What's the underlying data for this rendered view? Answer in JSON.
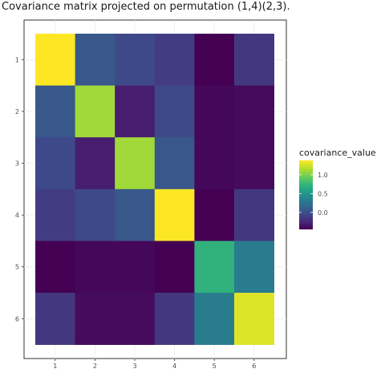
{
  "chart_data": {
    "type": "heatmap",
    "title": "Covariance matrix projected on permutation (1,4)(2,3).",
    "x_categories": [
      "1",
      "2",
      "3",
      "4",
      "5",
      "6"
    ],
    "y_categories": [
      "1",
      "2",
      "3",
      "4",
      "5",
      "6"
    ],
    "values": [
      [
        1.38,
        0.05,
        -0.05,
        -0.12,
        -0.45,
        -0.15
      ],
      [
        0.05,
        1.1,
        -0.3,
        -0.05,
        -0.42,
        -0.4
      ],
      [
        -0.05,
        -0.3,
        1.1,
        0.05,
        -0.42,
        -0.4
      ],
      [
        -0.12,
        -0.05,
        0.05,
        1.38,
        -0.45,
        -0.15
      ],
      [
        -0.45,
        -0.42,
        -0.42,
        -0.45,
        0.72,
        0.3
      ],
      [
        -0.15,
        -0.4,
        -0.4,
        -0.15,
        0.3,
        1.28
      ]
    ],
    "legend": {
      "title": "covariance_value",
      "ticks": [
        "0.0",
        "0.5",
        "1.0"
      ],
      "tick_values": [
        0.0,
        0.5,
        1.0
      ],
      "range": [
        -0.45,
        1.38
      ],
      "colormap": "viridis"
    },
    "grid": true,
    "legend_position": "right"
  }
}
